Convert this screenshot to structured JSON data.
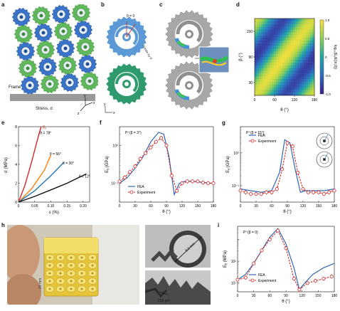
{
  "figure": {
    "panel_labels": {
      "a": "a",
      "b": "b",
      "c": "c",
      "d": "d",
      "e": "e",
      "f": "f",
      "g": "g",
      "h": "h",
      "i": "i"
    },
    "a": {
      "frame_label": "Frame",
      "stress_label": "Stress, σ",
      "axes": {
        "x": "x",
        "y": "y",
        "z": "z"
      }
    },
    "b": {
      "theta_eq0": "θ = 0",
      "rotate_label": "Rotate by θ",
      "axis_x": "x",
      "axis_y": "y"
    },
    "d": {
      "ylabel": "β (°)",
      "xlabel": "θ (°)",
      "cbar_label": "log₁₀(Eᵧ/E(π,0))",
      "cbar_ticks": [
        "1.0",
        "0.5",
        "0",
        "-0.5",
        "-1.0"
      ]
    },
    "e": {
      "ylabel": "σ (MPa)",
      "xlabel": "ε (%)",
      "ey_label": "Eᵧ",
      "curve_labels": [
        "θ = 78°",
        "θ = 56°",
        "θ = 30°",
        "θ = 12°"
      ]
    },
    "f": {
      "title": "P⁺(β = 3°)",
      "ylabel": "Eᵧ (GPa)",
      "xlabel": "θ (°)"
    },
    "g": {
      "title": "P⁺(β = 15°)",
      "ylabel": "Eᵧ (GPa)",
      "xlabel": "θ (°)"
    },
    "h": {
      "scale_outer": "8.8 mm",
      "scale_gap": "215 μm",
      "scale_height": "20 mm"
    },
    "i": {
      "title": "P⁺(β = 0)",
      "ylabel": "Eᵧ (MPa)",
      "xlabel": "θ (°)"
    },
    "legend": {
      "fea": "FEA",
      "experiment": "Experiment"
    }
  },
  "chart_data": [
    {
      "id": "d",
      "type": "heatmap",
      "x_ticks": [
        "0",
        "60",
        "120",
        "180"
      ],
      "y_ticks": [
        "30",
        "90",
        "150"
      ],
      "xlim": [
        0,
        180
      ],
      "ylim": [
        0,
        180
      ],
      "colorbar": {
        "range": [
          -1.0,
          1.0
        ],
        "ticks": [
          "1.0",
          "0.5",
          "0",
          "-0.5",
          "-1.0"
        ]
      },
      "xlabel": "θ (°)",
      "ylabel": "β (°)"
    },
    {
      "id": "e",
      "type": "line",
      "xlabel": "ε (%)",
      "ylabel": "σ (MPa)",
      "xlim": [
        0,
        0.22
      ],
      "ylim": [
        0,
        8
      ],
      "x_ticks": [
        "0",
        "0.05",
        "0.10",
        "0.15",
        "0.20"
      ],
      "y_ticks": [
        "0",
        "2",
        "4",
        "6",
        "8"
      ],
      "series": [
        {
          "name": "θ = 78°",
          "color": "#d62728",
          "x": [
            0,
            0.02,
            0.04,
            0.06,
            0.07
          ],
          "y": [
            0,
            1.8,
            4.2,
            6.8,
            8.0
          ]
        },
        {
          "name": "θ = 56°",
          "color": "#ff7f0e",
          "x": [
            0,
            0.04,
            0.08,
            0.1
          ],
          "y": [
            0,
            1.4,
            3.4,
            5.0
          ]
        },
        {
          "name": "θ = 30°",
          "color": "#1f77b4",
          "x": [
            0,
            0.05,
            0.1,
            0.14
          ],
          "y": [
            0,
            1.2,
            2.8,
            4.2
          ]
        },
        {
          "name": "θ = 12°",
          "color": "#111111",
          "x": [
            0,
            0.05,
            0.1,
            0.15,
            0.21
          ],
          "y": [
            0,
            0.6,
            1.3,
            2.0,
            3.0
          ]
        }
      ]
    },
    {
      "id": "f",
      "type": "line",
      "title": "P⁺(β = 3°)",
      "xlabel": "θ (°)",
      "ylabel": "Eᵧ (GPa)",
      "yscale": "log",
      "xlim": [
        0,
        180
      ],
      "ylim_exp": [
        -1.5,
        0.5
      ],
      "x_ticks": [
        "0",
        "30",
        "60",
        "90",
        "120",
        "150",
        "180"
      ],
      "y_ticks": [
        "10⁻¹",
        "10⁰"
      ],
      "series": [
        {
          "name": "FEA",
          "color": "#1f5bb5",
          "x": [
            0,
            15,
            30,
            45,
            60,
            75,
            85,
            95,
            105,
            115,
            125,
            140,
            160,
            180
          ],
          "log10y": [
            -1.0,
            -0.85,
            -0.6,
            -0.3,
            0.1,
            0.35,
            0.3,
            -0.3,
            -1.3,
            -1.0,
            -0.95,
            -0.95,
            -0.98,
            -1.0
          ]
        },
        {
          "name": "Experiment",
          "color": "#d62728",
          "x": [
            0,
            10,
            20,
            30,
            40,
            50,
            60,
            70,
            80,
            90,
            100,
            110,
            120,
            130,
            140,
            150,
            160,
            170,
            180
          ],
          "log10y": [
            -0.95,
            -0.85,
            -0.7,
            -0.55,
            -0.35,
            -0.2,
            -0.05,
            0.1,
            0.2,
            0.0,
            -0.8,
            -1.2,
            -1.0,
            -0.95,
            -0.95,
            -0.95,
            -0.98,
            -1.0,
            -1.0
          ]
        }
      ]
    },
    {
      "id": "g",
      "type": "line",
      "title": "P⁺(β = 15°)",
      "xlabel": "θ (°)",
      "ylabel": "Eᵧ (GPa)",
      "yscale": "log",
      "xlim": [
        0,
        180
      ],
      "ylim_exp": [
        -1.5,
        0.8
      ],
      "x_ticks": [
        "0",
        "30",
        "60",
        "90",
        "120",
        "150",
        "180"
      ],
      "y_ticks": [
        "10⁻¹",
        "10⁰"
      ],
      "series": [
        {
          "name": "FEA",
          "color": "#1f5bb5",
          "x": [
            0,
            20,
            40,
            60,
            75,
            85,
            95,
            105,
            115,
            125,
            140,
            160,
            180
          ],
          "log10y": [
            -1.1,
            -1.15,
            -1.2,
            -1.15,
            -0.6,
            0.4,
            0.3,
            -0.5,
            -1.2,
            -1.15,
            -1.15,
            -1.15,
            -1.1
          ]
        },
        {
          "name": "Experiment",
          "color": "#d62728",
          "x": [
            0,
            10,
            20,
            30,
            40,
            50,
            60,
            70,
            80,
            90,
            100,
            110,
            120,
            130,
            140,
            150,
            160,
            170,
            180
          ],
          "log10y": [
            -1.15,
            -1.2,
            -1.25,
            -1.25,
            -1.25,
            -1.2,
            -1.2,
            -1.1,
            -0.5,
            0.3,
            0.2,
            -0.6,
            -1.1,
            -1.2,
            -1.2,
            -1.2,
            -1.25,
            -1.2,
            -1.15
          ]
        }
      ]
    },
    {
      "id": "i",
      "type": "line",
      "title": "P⁺(β = 0)",
      "xlabel": "θ (°)",
      "ylabel": "Eᵧ (MPa)",
      "yscale": "log",
      "xlim": [
        0,
        180
      ],
      "ylim_exp": [
        -0.4,
        2.6
      ],
      "x_ticks": [
        "0",
        "30",
        "60",
        "90",
        "120",
        "150",
        "180"
      ],
      "y_ticks": [
        "10¹",
        "10²"
      ],
      "series": [
        {
          "name": "FEA",
          "color": "#1f5bb5",
          "x": [
            0,
            15,
            30,
            45,
            60,
            75,
            90,
            105,
            115,
            125,
            140,
            160,
            180
          ],
          "log10y": [
            0.15,
            0.4,
            0.9,
            1.5,
            2.1,
            2.5,
            1.8,
            0.7,
            -0.3,
            0.0,
            0.4,
            0.7,
            0.9
          ]
        },
        {
          "name": "Experiment",
          "color": "#d62728",
          "x": [
            0,
            15,
            30,
            45,
            60,
            75,
            90,
            105,
            115,
            130,
            145,
            160,
            175
          ],
          "log10y": [
            0.15,
            0.25,
            0.9,
            1.5,
            2.0,
            2.4,
            1.6,
            0.2,
            -0.3,
            0.0,
            0.1,
            0.2,
            0.3
          ]
        }
      ]
    }
  ]
}
